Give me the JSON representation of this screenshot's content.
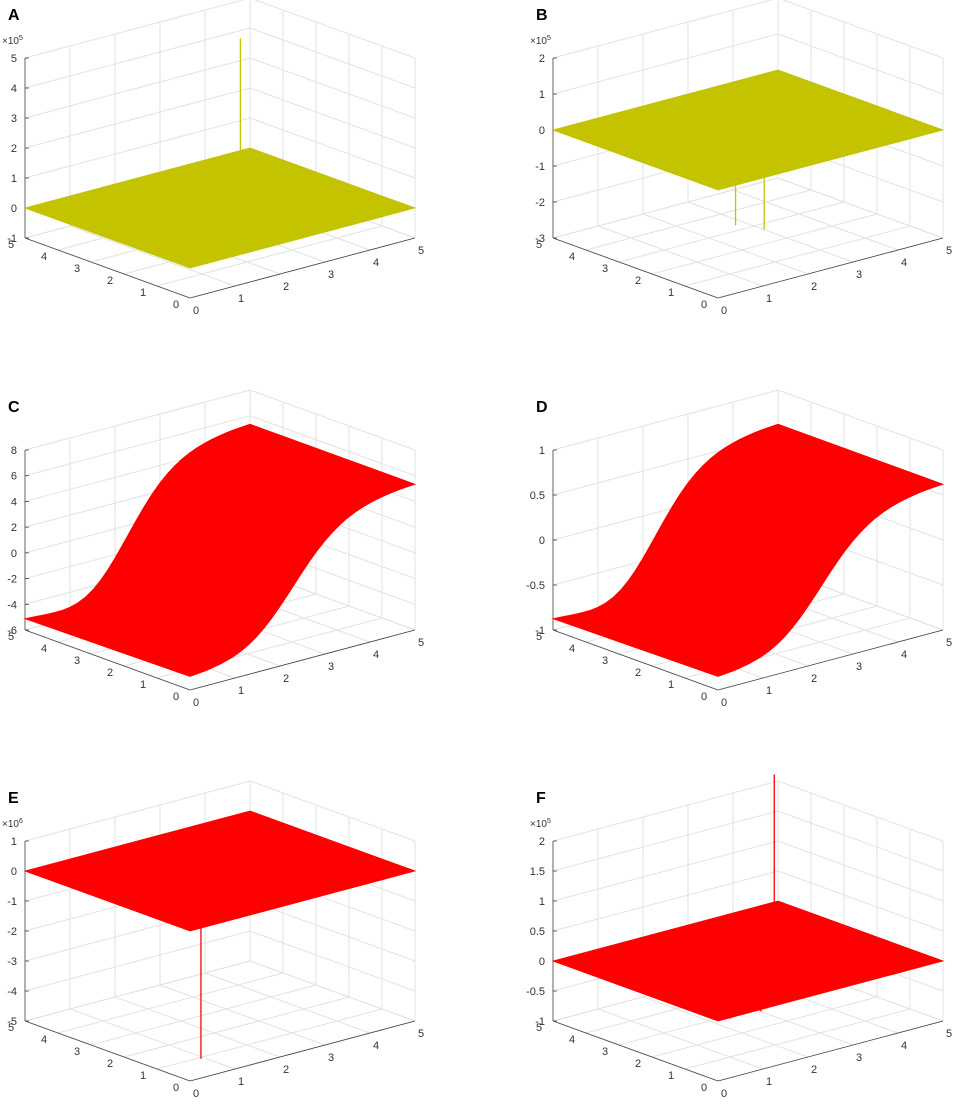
{
  "chart_data": [
    {
      "panel": "A",
      "type": "surface",
      "surface_color": "#c3c300",
      "surface_shape": "flat",
      "x_ticks": [
        "0",
        "1",
        "2",
        "3",
        "4",
        "5"
      ],
      "y_ticks": [
        "0",
        "1",
        "2",
        "3",
        "4",
        "5"
      ],
      "z_ticks": [
        "-1",
        "0",
        "1",
        "2",
        "3",
        "4",
        "5"
      ],
      "zlim": [
        -1,
        5
      ],
      "z_multiplier": {
        "base": "×10",
        "exp": "5"
      },
      "grid": true,
      "spikes": [
        {
          "x": 4.2,
          "y": 4.2,
          "z": 4.3
        }
      ]
    },
    {
      "panel": "B",
      "type": "surface",
      "surface_color": "#c3c300",
      "surface_shape": "flat",
      "x_ticks": [
        "0",
        "1",
        "2",
        "3",
        "4",
        "5"
      ],
      "y_ticks": [
        "0",
        "1",
        "2",
        "3",
        "4",
        "5"
      ],
      "z_ticks": [
        "-3",
        "-2",
        "-1",
        "0",
        "1",
        "2"
      ],
      "zlim": [
        -3,
        2
      ],
      "z_multiplier": {
        "base": "×10",
        "exp": "5"
      },
      "grid": true,
      "spikes": [
        {
          "x": 0.5,
          "y": 0.15,
          "z": -1.2
        },
        {
          "x": 1.1,
          "y": 0.1,
          "z": -1.5
        }
      ]
    },
    {
      "panel": "C",
      "type": "surface",
      "surface_color": "#ff0000",
      "surface_shape": "sigmoid",
      "x_ticks": [
        "0",
        "1",
        "2",
        "3",
        "4",
        "5"
      ],
      "y_ticks": [
        "0",
        "1",
        "2",
        "3",
        "4",
        "5"
      ],
      "z_ticks": [
        "-6",
        "-4",
        "-2",
        "0",
        "2",
        "4",
        "6",
        "8"
      ],
      "zlim": [
        -6,
        8
      ],
      "z_multiplier": null,
      "grid": true,
      "spikes": []
    },
    {
      "panel": "D",
      "type": "surface",
      "surface_color": "#ff0000",
      "surface_shape": "sigmoid",
      "x_ticks": [
        "0",
        "1",
        "2",
        "3",
        "4",
        "5"
      ],
      "y_ticks": [
        "0",
        "1",
        "2",
        "3",
        "4",
        "5"
      ],
      "z_ticks": [
        "-1",
        "-0.5",
        "0",
        "0.5",
        "1"
      ],
      "zlim": [
        -1,
        1
      ],
      "z_multiplier": null,
      "grid": true,
      "spikes": []
    },
    {
      "panel": "E",
      "type": "surface",
      "surface_color": "#ff0000",
      "surface_shape": "flat",
      "x_ticks": [
        "0",
        "1",
        "2",
        "3",
        "4",
        "5"
      ],
      "y_ticks": [
        "0",
        "1",
        "2",
        "3",
        "4",
        "5"
      ],
      "z_ticks": [
        "-5",
        "-4",
        "-3",
        "-2",
        "-1",
        "0",
        "1"
      ],
      "zlim": [
        -5,
        1
      ],
      "z_multiplier": {
        "base": "×10",
        "exp": "6"
      },
      "grid": true,
      "spikes": [
        {
          "x": 4.6,
          "y": 4.8,
          "z": 0.1
        },
        {
          "x": 0.5,
          "y": 0.35,
          "z": -4.6
        }
      ]
    },
    {
      "panel": "F",
      "type": "surface",
      "surface_color": "#ff0000",
      "surface_shape": "flat",
      "x_ticks": [
        "0",
        "1",
        "2",
        "3",
        "4",
        "5"
      ],
      "y_ticks": [
        "0",
        "1",
        "2",
        "3",
        "4",
        "5"
      ],
      "z_ticks": [
        "-1",
        "-0.5",
        "0",
        "0.5",
        "1",
        "1.5",
        "2"
      ],
      "zlim": [
        -1,
        2
      ],
      "z_multiplier": {
        "base": "×10",
        "exp": "5"
      },
      "grid": true,
      "spikes": [
        {
          "x": 4.55,
          "y": 4.5,
          "z": 2.3
        },
        {
          "x": 0.5,
          "y": 0.3,
          "z": -0.12
        },
        {
          "x": 1.1,
          "y": 0.2,
          "z": -0.1
        }
      ]
    }
  ]
}
